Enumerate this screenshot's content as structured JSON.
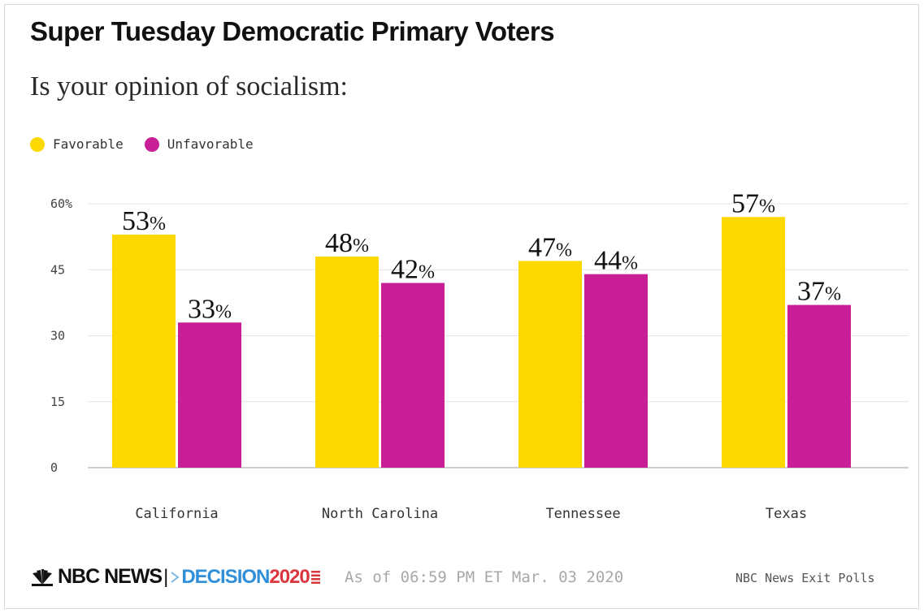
{
  "header": {
    "title": "Super Tuesday Democratic Primary Voters",
    "subtitle": "Is your opinion of socialism:"
  },
  "legend": [
    {
      "label": "Favorable",
      "color": "#fdd900"
    },
    {
      "label": "Unfavorable",
      "color": "#c81e96"
    }
  ],
  "chart_data": {
    "type": "bar",
    "title": "Super Tuesday Democratic Primary Voters",
    "subtitle": "Is your opinion of socialism:",
    "categories": [
      "California",
      "North Carolina",
      "Tennessee",
      "Texas"
    ],
    "series": [
      {
        "name": "Favorable",
        "color": "#fdd900",
        "values": [
          53,
          48,
          47,
          57
        ]
      },
      {
        "name": "Unfavorable",
        "color": "#c81e96",
        "values": [
          33,
          42,
          44,
          37
        ]
      }
    ],
    "ylim": [
      0,
      60
    ],
    "yticks": [
      0,
      15,
      30,
      45,
      60
    ],
    "ytick_labels": [
      "0",
      "15",
      "30",
      "45",
      "60%"
    ],
    "data_label_suffix": "%",
    "grid": true,
    "legend_position": "top-left"
  },
  "footer": {
    "brand": "NBC NEWS",
    "separator": "|",
    "decision": "DECISION",
    "year": "2020",
    "timestamp": "As of 06:59 PM ET Mar. 03 2020",
    "source": "NBC News Exit Polls"
  }
}
